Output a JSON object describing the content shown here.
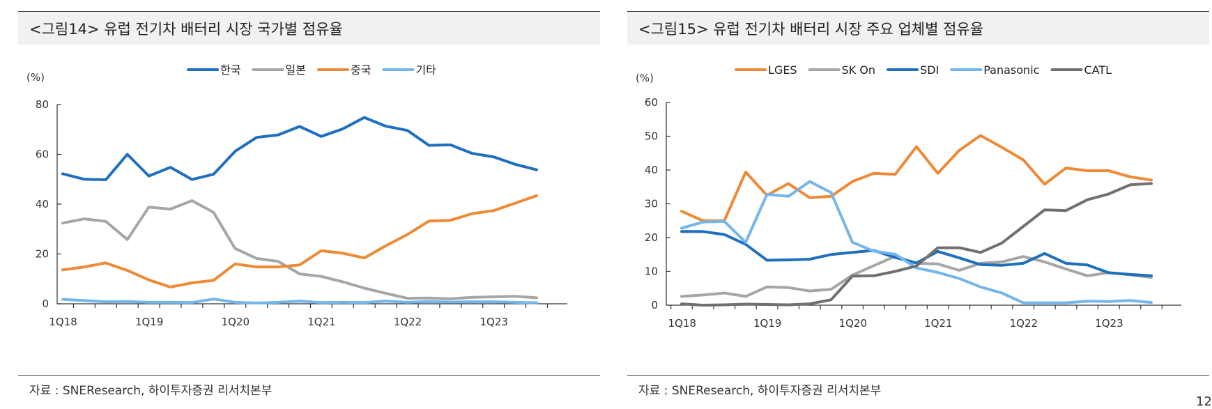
{
  "page_number": "12",
  "chart_data": [
    {
      "type": "line",
      "title": "<그림14> 유럽 전기차 배터리 시장 국가별 점유율",
      "unit_label": "(%)",
      "ylim": [
        0,
        80
      ],
      "yticks": [
        0,
        20,
        40,
        60,
        80
      ],
      "x_ticks": [
        {
          "index": 0,
          "label": "1Q18"
        },
        {
          "index": 4,
          "label": "1Q19"
        },
        {
          "index": 8,
          "label": "1Q20"
        },
        {
          "index": 12,
          "label": "1Q21"
        },
        {
          "index": 16,
          "label": "1Q22"
        },
        {
          "index": 20,
          "label": "1Q23"
        }
      ],
      "n_points": 23,
      "legend_position": "top-center",
      "grid": false,
      "source": "자료 : SNEResearch, 하이투자증권 리서치본부",
      "series": [
        {
          "name": "한국",
          "color": "#1f6fbf",
          "values": [
            52.2,
            50.0,
            49.8,
            60.0,
            51.3,
            54.8,
            49.9,
            52.0,
            61.2,
            66.8,
            67.8,
            71.2,
            67.2,
            70.2,
            74.8,
            71.3,
            69.6,
            63.6,
            63.8,
            60.4,
            59.0,
            56.0,
            53.8
          ]
        },
        {
          "name": "일본",
          "color": "#a6a6a6",
          "values": [
            32.4,
            34.1,
            33.1,
            25.8,
            38.8,
            38.0,
            41.4,
            36.7,
            22.2,
            18.2,
            17.0,
            12.0,
            11.0,
            8.8,
            6.3,
            4.2,
            2.2,
            2.3,
            2.0,
            2.6,
            2.8,
            3.0,
            2.4
          ]
        },
        {
          "name": "중국",
          "color": "#ee8a35",
          "values": [
            13.6,
            14.8,
            16.4,
            13.4,
            9.6,
            6.7,
            8.4,
            9.4,
            16.0,
            14.8,
            14.8,
            15.6,
            21.3,
            20.3,
            18.4,
            23.3,
            27.8,
            33.2,
            33.5,
            36.2,
            37.4,
            40.4,
            43.4
          ]
        },
        {
          "name": "기타",
          "color": "#74b6ec",
          "values": [
            1.8,
            1.3,
            0.8,
            0.9,
            0.6,
            0.6,
            0.5,
            1.9,
            0.6,
            0.3,
            0.6,
            1.1,
            0.5,
            0.6,
            0.5,
            1.1,
            0.6,
            0.9,
            0.7,
            0.8,
            0.8,
            0.6,
            0.4
          ]
        }
      ]
    },
    {
      "type": "line",
      "title": "<그림15> 유럽 전기차 배터리 시장 주요 업체별 점유율",
      "unit_label": "(%)",
      "ylim": [
        0,
        60
      ],
      "yticks": [
        0,
        10,
        20,
        30,
        40,
        50,
        60
      ],
      "x_ticks": [
        {
          "index": 0,
          "label": "1Q18"
        },
        {
          "index": 4,
          "label": "1Q19"
        },
        {
          "index": 8,
          "label": "1Q20"
        },
        {
          "index": 12,
          "label": "1Q21"
        },
        {
          "index": 16,
          "label": "1Q22"
        },
        {
          "index": 20,
          "label": "1Q23"
        }
      ],
      "n_points": 23,
      "legend_position": "top-center",
      "grid": false,
      "source": "자료 : SNEResearch, 하이투자증권 리서치본부",
      "series": [
        {
          "name": "LGES",
          "color": "#ee8a35",
          "values": [
            27.8,
            25.0,
            25.0,
            39.4,
            32.5,
            36.0,
            31.8,
            32.2,
            36.6,
            39.0,
            38.7,
            46.9,
            39.0,
            45.8,
            50.2,
            46.7,
            43.0,
            35.8,
            40.6,
            39.8,
            39.8,
            38.0,
            37.0
          ]
        },
        {
          "name": "SK On",
          "color": "#a6a6a6",
          "values": [
            2.6,
            3.0,
            3.6,
            2.6,
            5.4,
            5.2,
            4.2,
            4.7,
            8.9,
            11.7,
            14.5,
            12.4,
            12.2,
            10.3,
            12.4,
            12.8,
            14.4,
            12.8,
            10.7,
            8.7,
            9.6,
            9.0,
            8.2
          ]
        },
        {
          "name": "SDI",
          "color": "#1f6fbf",
          "values": [
            21.8,
            21.8,
            20.9,
            18.0,
            13.3,
            13.4,
            13.6,
            15.0,
            15.6,
            16.2,
            14.1,
            12.5,
            15.9,
            14.0,
            12.0,
            11.8,
            12.4,
            15.3,
            12.4,
            11.9,
            9.6,
            9.1,
            8.7
          ]
        },
        {
          "name": "Panasonic",
          "color": "#74b6ec",
          "values": [
            22.8,
            24.6,
            24.8,
            18.6,
            32.8,
            32.2,
            36.6,
            33.3,
            18.6,
            16.0,
            15.1,
            11.0,
            9.7,
            7.9,
            5.4,
            3.6,
            0.7,
            0.7,
            0.7,
            1.2,
            1.1,
            1.4,
            0.8
          ]
        },
        {
          "name": "CATL",
          "color": "#707070",
          "values": [
            0.4,
            0.0,
            0.1,
            0.3,
            0.2,
            0.1,
            0.4,
            1.6,
            8.6,
            8.7,
            10.0,
            11.6,
            17.0,
            17.0,
            15.6,
            18.4,
            23.3,
            28.2,
            28.0,
            31.2,
            32.9,
            35.6,
            36.0
          ]
        }
      ]
    }
  ]
}
